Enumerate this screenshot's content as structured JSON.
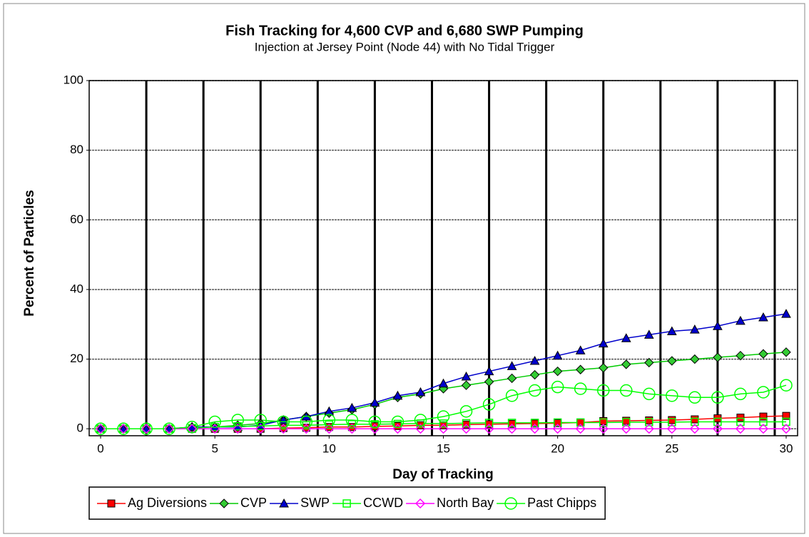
{
  "chart_data": {
    "type": "line",
    "title": "Fish Tracking for 4,600 CVP and 6,680 SWP Pumping",
    "subtitle": "Injection at Jersey Point (Node 44) with No Tidal Trigger",
    "x_label": "Day of Tracking",
    "y_label": "Percent of Particles",
    "x": [
      0,
      1,
      2,
      3,
      4,
      5,
      6,
      7,
      8,
      9,
      10,
      11,
      12,
      13,
      14,
      15,
      16,
      17,
      18,
      19,
      20,
      21,
      22,
      23,
      24,
      25,
      26,
      27,
      28,
      29,
      30
    ],
    "xlim": [
      -0.5,
      30.5
    ],
    "xticks": [
      0,
      5,
      10,
      15,
      20,
      25,
      30
    ],
    "x_grid_lines": [
      2,
      4.5,
      7,
      9.5,
      12,
      14.5,
      17,
      19.5,
      22,
      24.5,
      27,
      29.5
    ],
    "ylim": [
      -2,
      100
    ],
    "yticks": [
      0,
      20,
      40,
      60,
      80,
      100
    ],
    "grid": true,
    "legend": "bottom",
    "series": [
      {
        "name": "Ag Diversions",
        "color": "#ff0000",
        "marker": "square",
        "marker_fill": "#ff0000",
        "values": [
          0,
          0,
          0,
          0,
          0,
          0,
          0,
          0,
          0.2,
          0.3,
          0.5,
          0.5,
          0.7,
          0.8,
          1,
          1,
          1.2,
          1.3,
          1.4,
          1.5,
          1.6,
          1.8,
          2.2,
          2.3,
          2.4,
          2.5,
          2.7,
          3,
          3.2,
          3.5,
          3.7
        ]
      },
      {
        "name": "CVP",
        "color": "#00cc00",
        "marker": "diamond",
        "marker_fill": "#33cc33",
        "values": [
          0,
          0,
          0,
          0,
          0.5,
          0.5,
          1,
          1.5,
          2.5,
          3.5,
          4.5,
          5.5,
          7,
          9,
          10,
          11.5,
          12.5,
          13.5,
          14.5,
          15.5,
          16.5,
          17,
          17.5,
          18.5,
          19,
          19.5,
          20,
          20.5,
          21,
          21.5,
          22
        ]
      },
      {
        "name": "SWP",
        "color": "#0000cc",
        "marker": "triangle",
        "marker_fill": "#0000cc",
        "values": [
          0,
          0,
          0,
          0,
          0.5,
          0.5,
          0.5,
          1,
          2.5,
          3.5,
          5,
          6,
          7.5,
          9.5,
          10.5,
          13,
          15,
          16.5,
          18,
          19.5,
          21,
          22.5,
          24.5,
          26,
          27,
          28,
          28.5,
          29.5,
          31,
          32,
          33
        ]
      },
      {
        "name": "CCWD",
        "color": "#00ff00",
        "marker": "square",
        "marker_fill": "none",
        "values": [
          0,
          0,
          0,
          0,
          0.2,
          0.5,
          0.7,
          0.8,
          1,
          1,
          1.2,
          1.3,
          1.3,
          1.4,
          1.5,
          1.5,
          1.6,
          1.7,
          1.7,
          1.7,
          1.8,
          1.8,
          1.8,
          1.9,
          1.9,
          1.9,
          2,
          2,
          2,
          2,
          2
        ]
      },
      {
        "name": "North Bay",
        "color": "#ff00ff",
        "marker": "diamond",
        "marker_fill": "none",
        "values": [
          0,
          0,
          0,
          0,
          0,
          0,
          0,
          0,
          0,
          0,
          0,
          0,
          0,
          0,
          0,
          0,
          0,
          0,
          0,
          0,
          0,
          0,
          0,
          0,
          0,
          0,
          0,
          0,
          0,
          0,
          0
        ]
      },
      {
        "name": "Past Chipps",
        "color": "#00ff00",
        "marker": "circle",
        "marker_fill": "none",
        "values": [
          0,
          0,
          0,
          0,
          0.5,
          2,
          2.5,
          2.5,
          2,
          2,
          2.5,
          2.5,
          2,
          2,
          2.5,
          3.5,
          5,
          7,
          9.5,
          11,
          12,
          11.5,
          11,
          11,
          10,
          9.5,
          9,
          9,
          10,
          10.5,
          12.5
        ]
      }
    ]
  }
}
